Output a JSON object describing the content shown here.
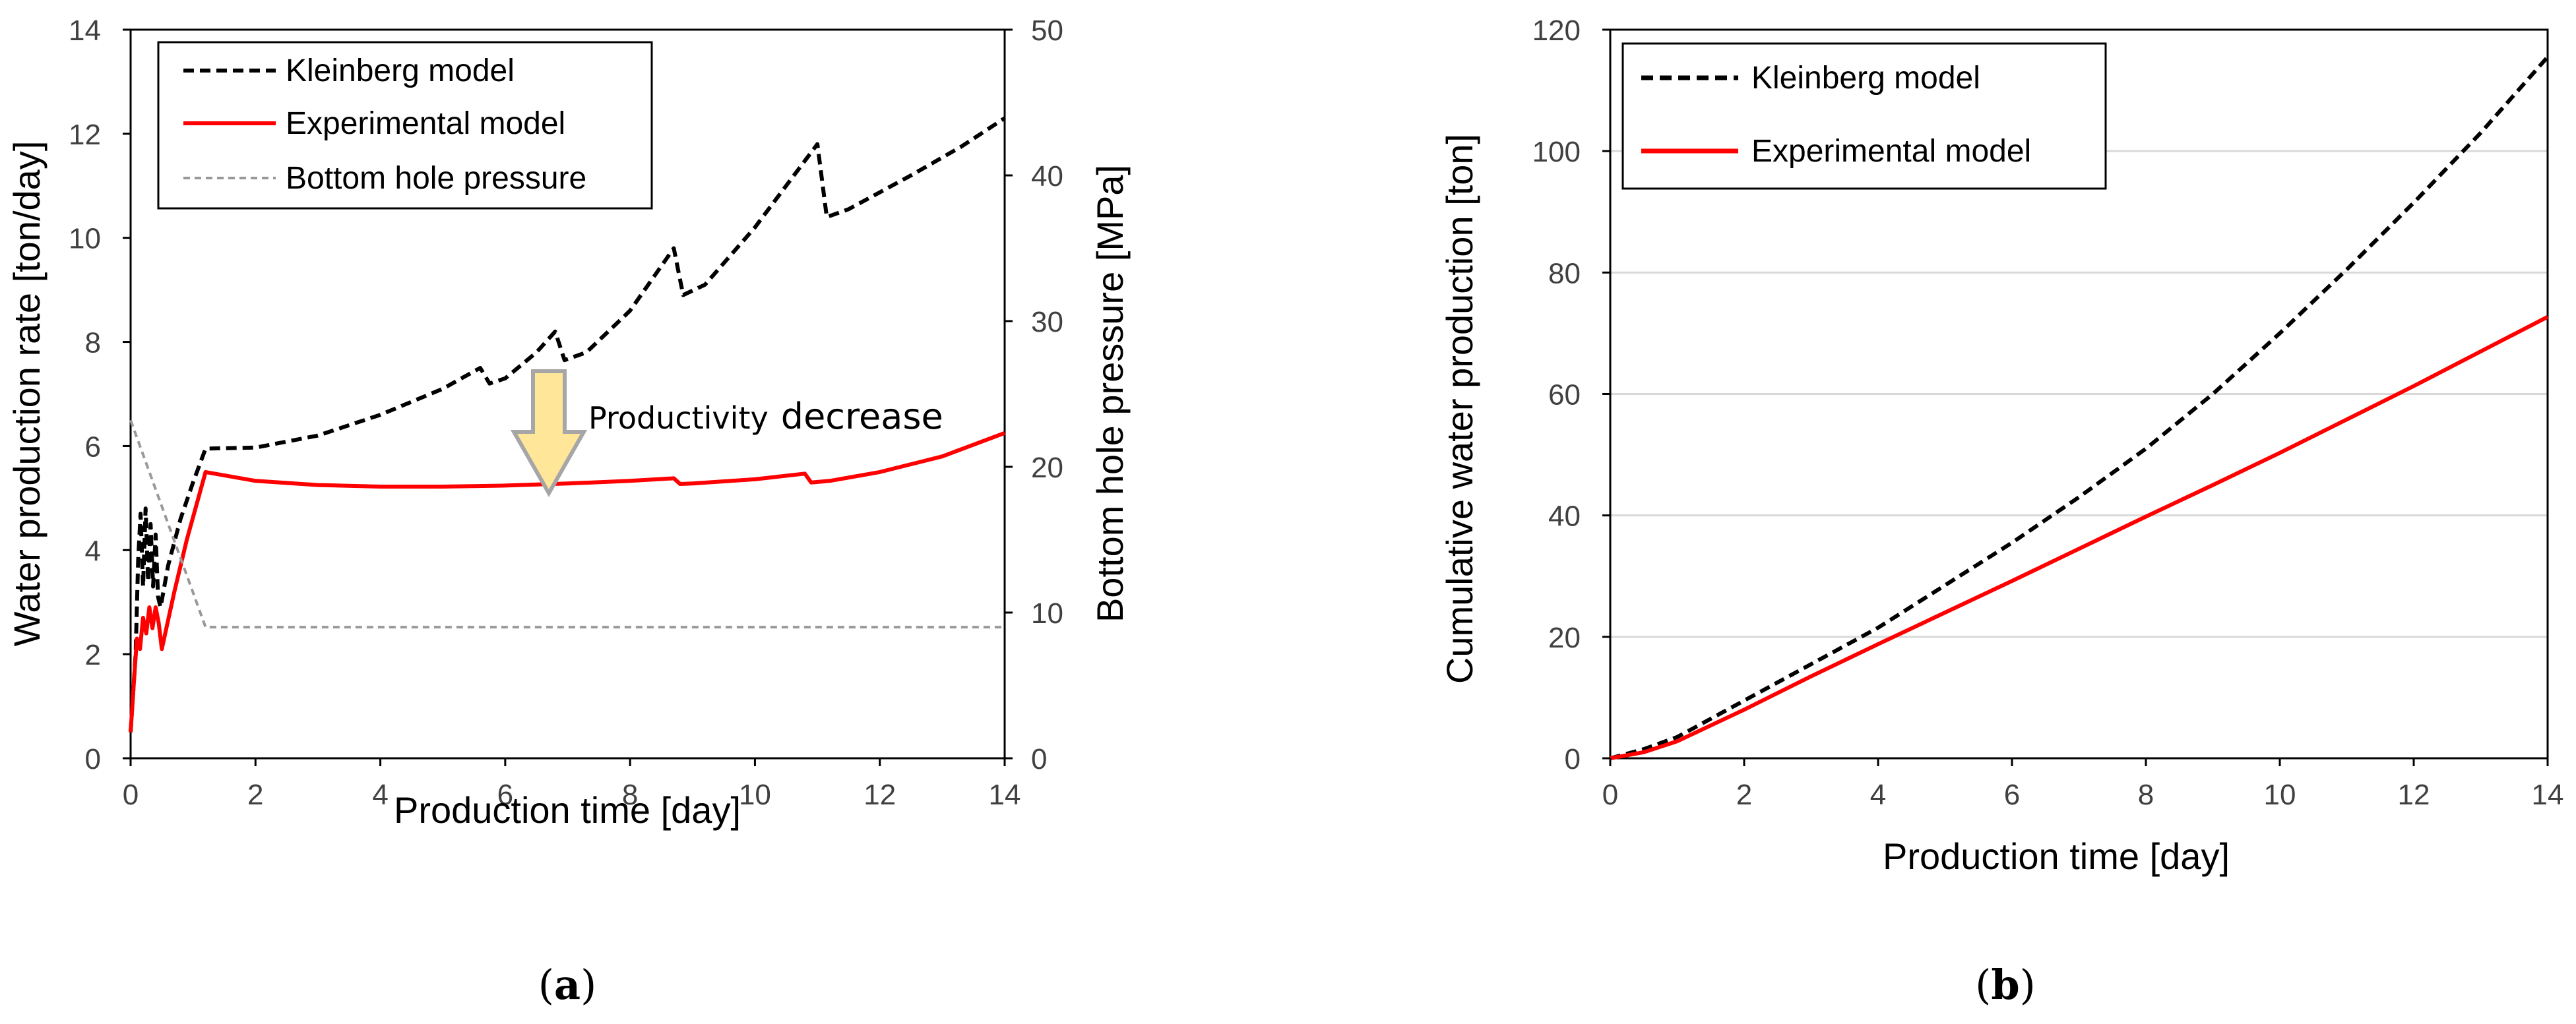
{
  "chart_data": [
    {
      "type": "line",
      "panel_label": "(a)",
      "panel_letter": "a",
      "xlabel": "Production time [day]",
      "ylabel": "Water production rate [ton/day]",
      "y2label": "Bottom hole pressure [MPa]",
      "xlim": [
        0,
        14
      ],
      "ylim": [
        0,
        14
      ],
      "y2lim": [
        0,
        50
      ],
      "xticks": [
        "0",
        "2",
        "4",
        "6",
        "8",
        "10",
        "12",
        "14"
      ],
      "yticks": [
        "0",
        "2",
        "4",
        "6",
        "8",
        "10",
        "12",
        "14"
      ],
      "y2ticks": [
        "0",
        "10",
        "20",
        "30",
        "40",
        "50"
      ],
      "grid": false,
      "legend_position": "top-left",
      "annotation": {
        "text_part1": "Productivity",
        "text_part2": "decrease",
        "arrow": "down",
        "x": 6.7,
        "y_from": 7.5,
        "y_to": 5.0
      },
      "series": [
        {
          "name": "Kleinberg model",
          "axis": "left",
          "style": "dashed",
          "color": "#000000",
          "x": [
            0,
            0.08,
            0.12,
            0.16,
            0.2,
            0.24,
            0.28,
            0.32,
            0.36,
            0.4,
            0.44,
            0.48,
            0.6,
            0.8,
            1.0,
            1.2,
            2,
            3,
            4,
            5,
            5.6,
            5.75,
            6,
            6.5,
            6.8,
            6.95,
            7.3,
            8,
            8.7,
            8.85,
            9.2,
            10,
            11.0,
            11.15,
            11.5,
            12.5,
            13.3,
            14
          ],
          "y": [
            0.5,
            2.0,
            3.8,
            4.7,
            3.3,
            4.8,
            3.4,
            4.5,
            3.3,
            4.3,
            3.1,
            2.9,
            3.7,
            4.6,
            5.3,
            5.95,
            5.97,
            6.2,
            6.6,
            7.1,
            7.5,
            7.2,
            7.3,
            7.8,
            8.2,
            7.65,
            7.8,
            8.6,
            9.8,
            8.9,
            9.1,
            10.2,
            11.8,
            10.4,
            10.55,
            11.2,
            11.75,
            12.3
          ]
        },
        {
          "name": "Experimental model",
          "axis": "left",
          "style": "solid",
          "color": "#ff0000",
          "x": [
            0,
            0.06,
            0.1,
            0.15,
            0.2,
            0.25,
            0.3,
            0.35,
            0.4,
            0.45,
            0.5,
            0.7,
            0.9,
            1.2,
            2,
            3,
            4,
            5,
            6,
            7,
            8,
            8.7,
            8.8,
            9,
            10,
            10.8,
            10.9,
            11.2,
            12,
            13,
            14
          ],
          "y": [
            0.5,
            1.6,
            2.3,
            2.1,
            2.7,
            2.4,
            2.9,
            2.5,
            2.9,
            2.6,
            2.1,
            3.2,
            4.2,
            5.5,
            5.33,
            5.25,
            5.22,
            5.22,
            5.24,
            5.28,
            5.33,
            5.38,
            5.27,
            5.28,
            5.36,
            5.47,
            5.3,
            5.33,
            5.5,
            5.8,
            6.25
          ]
        },
        {
          "name": "Bottom hole pressure",
          "axis": "right",
          "style": "dashed",
          "color": "#999999",
          "x": [
            0,
            1.2,
            14
          ],
          "y": [
            23.2,
            9.0,
            9.0
          ]
        }
      ]
    },
    {
      "type": "line",
      "panel_label": "(b)",
      "panel_letter": "b",
      "xlabel": "Production time [day]",
      "ylabel": "Cumulative water production [ton]",
      "xlim": [
        0,
        14
      ],
      "ylim": [
        0,
        120
      ],
      "xticks": [
        "0",
        "2",
        "4",
        "6",
        "8",
        "10",
        "12",
        "14"
      ],
      "yticks": [
        "0",
        "20",
        "40",
        "60",
        "80",
        "100",
        "120"
      ],
      "grid": true,
      "legend_position": "top-left",
      "series": [
        {
          "name": "Kleinberg model",
          "style": "dashed",
          "color": "#000000",
          "x": [
            0,
            0.5,
            1,
            2,
            3,
            4,
            5,
            6,
            7,
            8,
            9,
            10,
            11,
            12,
            13,
            14
          ],
          "y": [
            0,
            1.5,
            3.5,
            9.5,
            15.5,
            21.5,
            28.5,
            35.5,
            43,
            51,
            60,
            70,
            80.5,
            91.5,
            103,
            115.5
          ]
        },
        {
          "name": "Experimental model",
          "style": "solid",
          "color": "#ff0000",
          "x": [
            0,
            0.5,
            1,
            2,
            3,
            4,
            5,
            6,
            7,
            8,
            9,
            10,
            11,
            12,
            13,
            14
          ],
          "y": [
            0,
            1.0,
            2.8,
            8.0,
            13.5,
            18.8,
            24.0,
            29.2,
            34.5,
            39.8,
            45.0,
            50.3,
            55.8,
            61.3,
            67.0,
            72.7
          ]
        }
      ]
    }
  ]
}
